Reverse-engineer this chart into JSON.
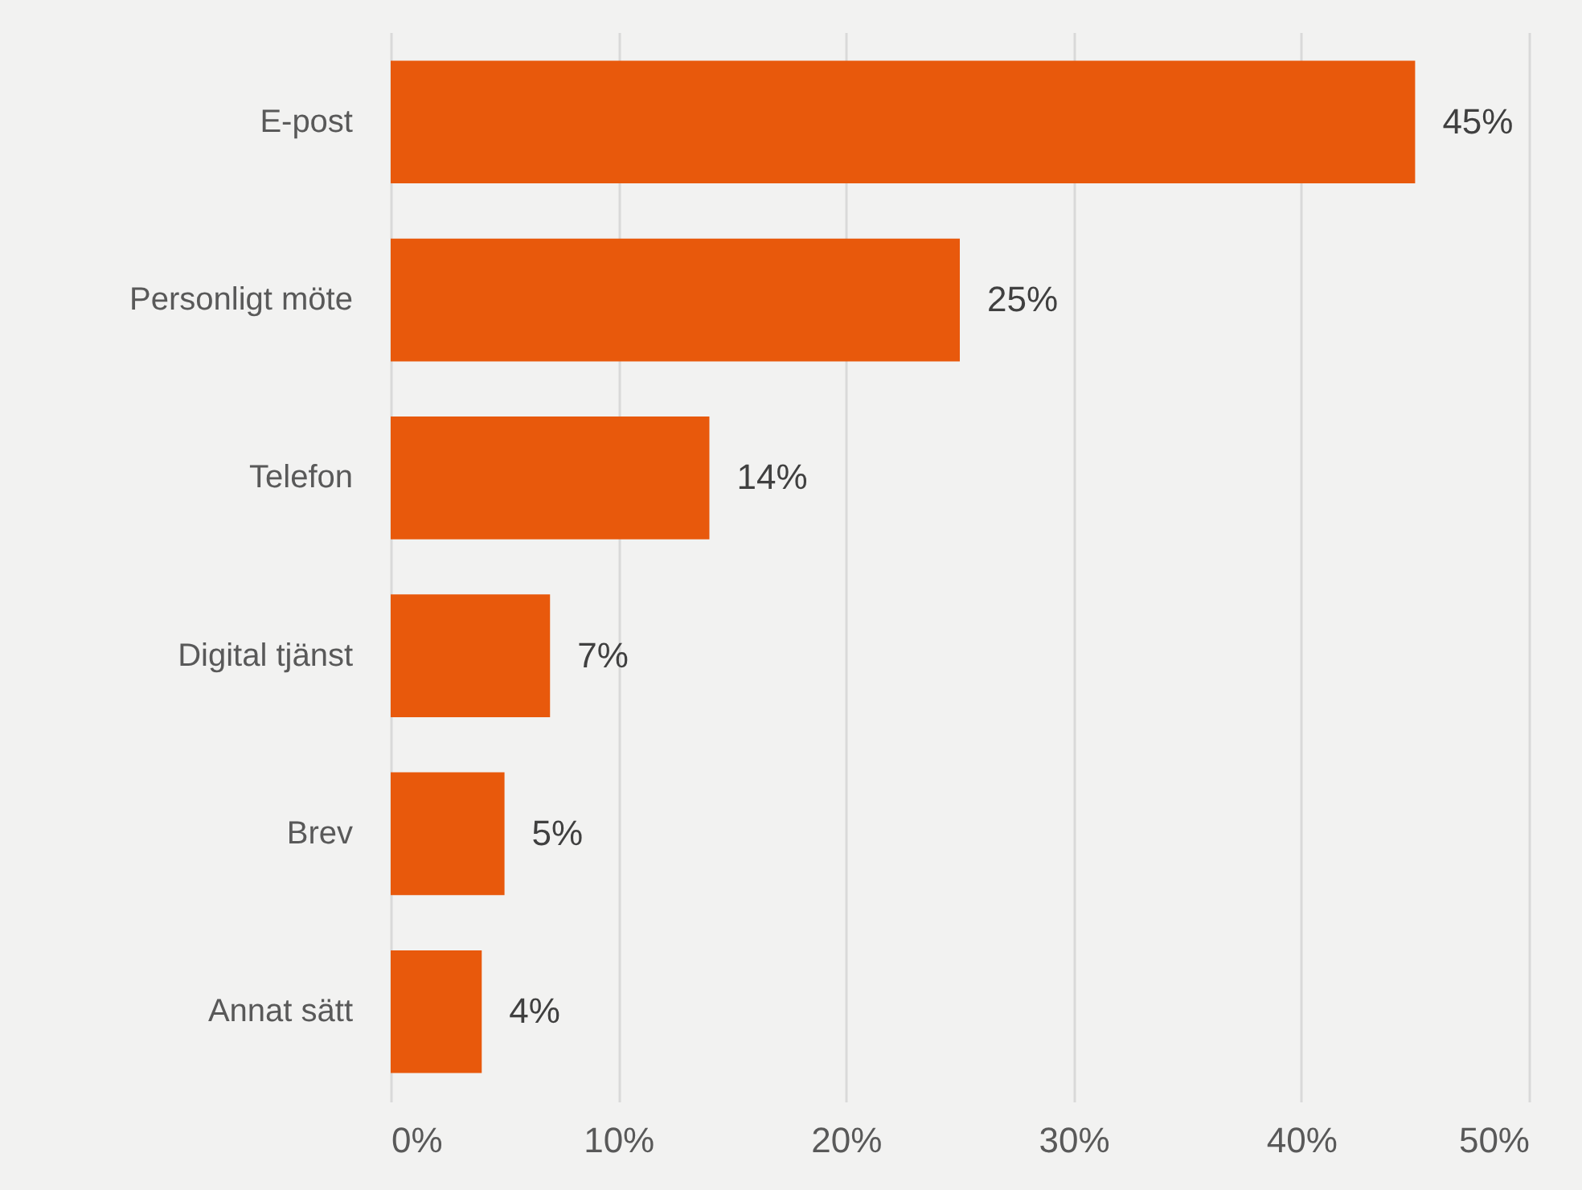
{
  "chart_data": {
    "type": "bar",
    "orientation": "horizontal",
    "categories": [
      "E-post",
      "Personligt möte",
      "Telefon",
      "Digital tjänst",
      "Brev",
      "Annat sätt"
    ],
    "values": [
      45,
      25,
      14,
      7,
      5,
      4
    ],
    "value_labels": [
      "45%",
      "25%",
      "14%",
      "7%",
      "5%",
      "4%"
    ],
    "color": "#e8590c",
    "xlim": [
      0,
      50
    ],
    "xticks": [
      {
        "value": 0,
        "label": "0%"
      },
      {
        "value": 10,
        "label": "10%"
      },
      {
        "value": 20,
        "label": "20%"
      },
      {
        "value": 30,
        "label": "30%"
      },
      {
        "value": 40,
        "label": "40%"
      },
      {
        "value": 50,
        "label": "50%"
      }
    ],
    "grid": "x"
  }
}
